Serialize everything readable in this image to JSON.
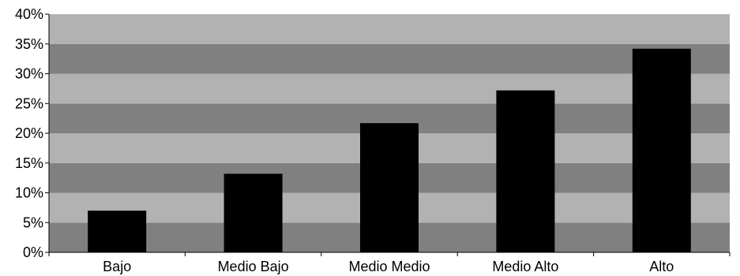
{
  "chart_data": {
    "type": "bar",
    "categories": [
      "Bajo",
      "Medio Bajo",
      "Medio Medio",
      "Medio Alto",
      "Alto"
    ],
    "values": [
      7,
      13.2,
      21.7,
      27.2,
      34.2
    ],
    "y_tick_labels": [
      "0%",
      "5%",
      "10%",
      "15%",
      "20%",
      "25%",
      "30%",
      "35%",
      "40%"
    ],
    "ylim": [
      0,
      40
    ],
    "y_unit": "%",
    "title": "",
    "xlabel": "",
    "ylabel": "",
    "legend": "none",
    "gridlines": false,
    "background": "alternating-bands",
    "colors": {
      "bar": "#000000",
      "band_light": "#b2b2b2",
      "band_dark": "#808080",
      "axis": "#000000",
      "text": "#000000"
    }
  }
}
